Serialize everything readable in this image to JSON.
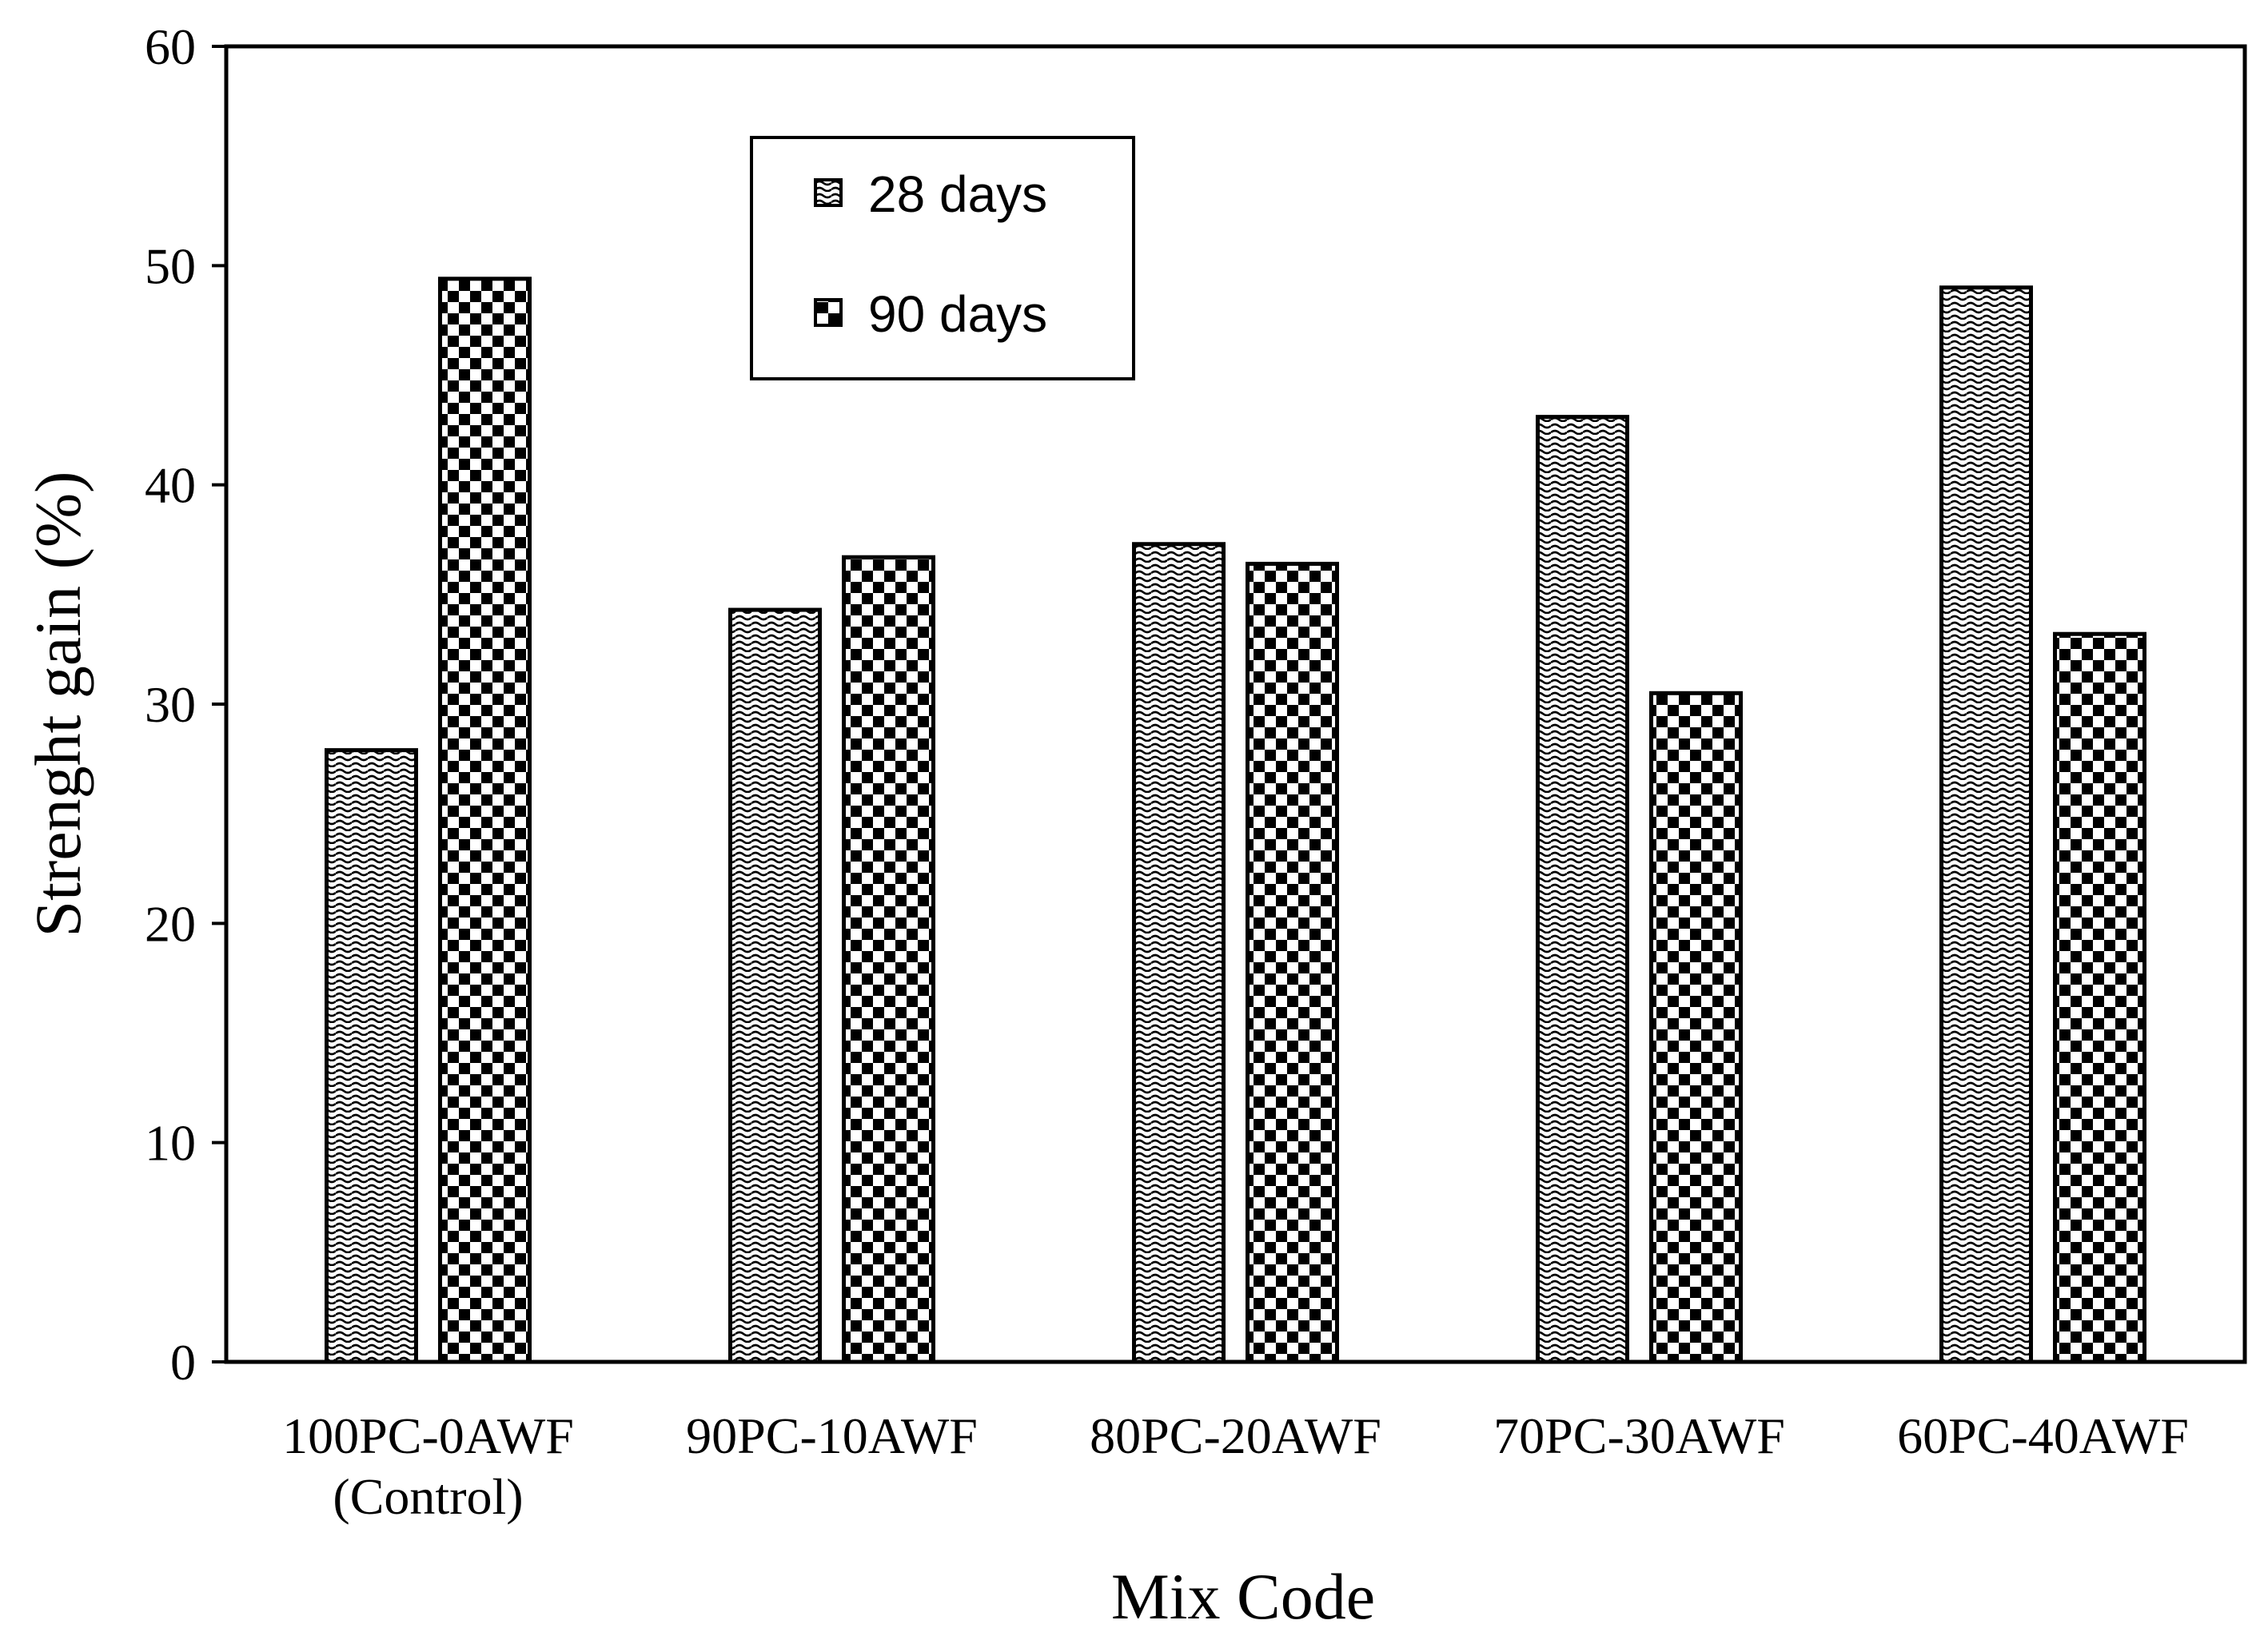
{
  "chart_data": {
    "type": "bar",
    "title": "",
    "xlabel": "Mix Code",
    "ylabel": "Strenght gain (%)",
    "ylim": [
      0,
      60
    ],
    "yticks": [
      0,
      10,
      20,
      30,
      40,
      50,
      60
    ],
    "grid": false,
    "legend_position": "top-center",
    "categories": [
      [
        "100PC-0AWF",
        "(Control)"
      ],
      [
        "90PC-10AWF"
      ],
      [
        "80PC-20AWF"
      ],
      [
        "70PC-30AWF"
      ],
      [
        "60PC-40AWF"
      ]
    ],
    "series": [
      {
        "name": "28 days",
        "pattern": "wave",
        "values": [
          27.9,
          34.3,
          37.3,
          43.1,
          49.0
        ]
      },
      {
        "name": "90 days",
        "pattern": "checker",
        "values": [
          49.4,
          36.7,
          36.4,
          30.5,
          33.2
        ]
      }
    ],
    "colors": {
      "bar_fill": "#000000",
      "bar_background": "#ffffff",
      "axis": "#000000"
    }
  }
}
